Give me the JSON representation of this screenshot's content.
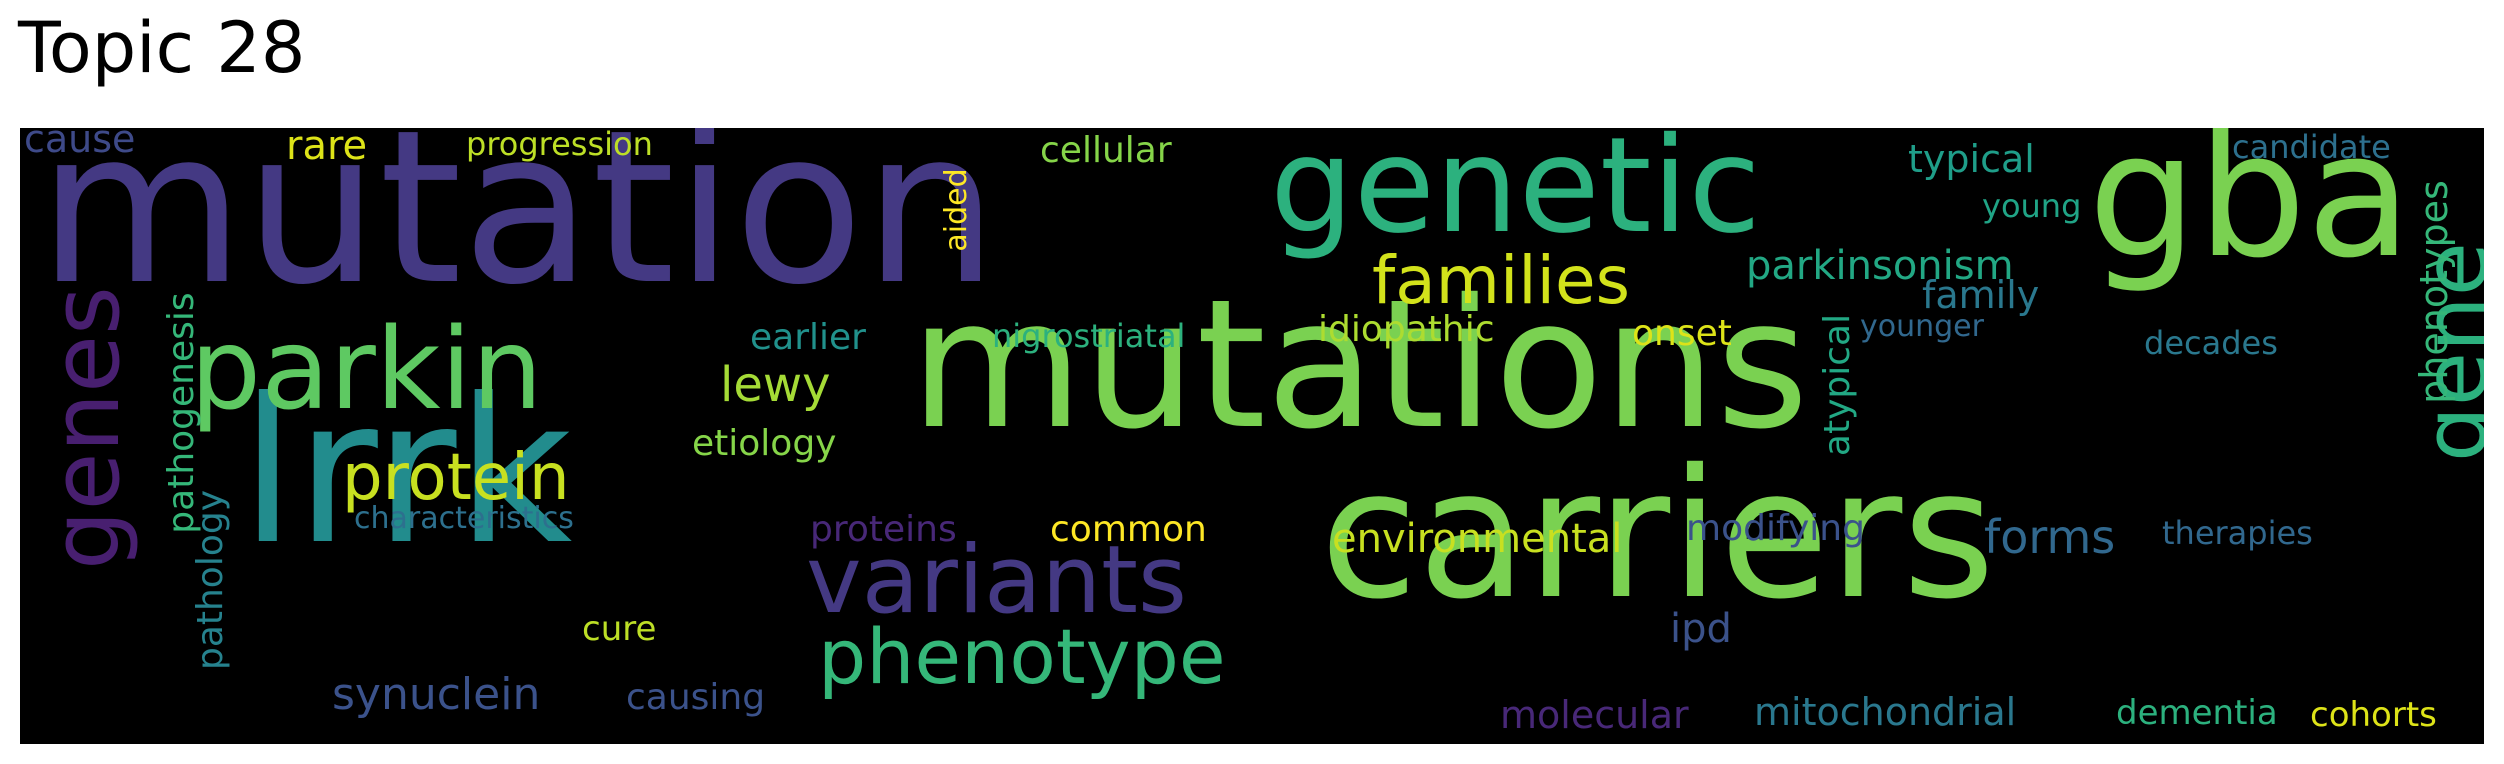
{
  "title": "Topic 28",
  "words": {
    "mutations": {
      "text": "mutations",
      "color": "#7ad151"
    },
    "mutation": {
      "text": "mutation",
      "color": "#443983"
    },
    "carriers": {
      "text": "carriers",
      "color": "#7ad151"
    },
    "lrrk": {
      "text": "lrrk",
      "color": "#228c8d"
    },
    "gba": {
      "text": "gba",
      "color": "#7ad151"
    },
    "genetic": {
      "text": "genetic",
      "color": "#2cb17e"
    },
    "parkin": {
      "text": "parkin",
      "color": "#5ec962"
    },
    "variants": {
      "text": "variants",
      "color": "#443983"
    },
    "phenotype": {
      "text": "phenotype",
      "color": "#35b779"
    },
    "protein": {
      "text": "protein",
      "color": "#c8e020"
    },
    "genes": {
      "text": "genes",
      "color": "#481f70"
    },
    "gene": {
      "text": "gene",
      "color": "#2cb17e"
    },
    "families": {
      "text": "families",
      "color": "#d2e21b"
    },
    "parkinsonism": {
      "text": "parkinsonism",
      "color": "#22a884"
    },
    "lewy": {
      "text": "lewy",
      "color": "#a5db36"
    },
    "synuclein": {
      "text": "synuclein",
      "color": "#3b528b"
    },
    "environmental": {
      "text": "environmental",
      "color": "#c8e020"
    },
    "phenotypes": {
      "text": "phenotypes",
      "color": "#35b779"
    },
    "typical": {
      "text": "typical",
      "color": "#1f9e89"
    },
    "family": {
      "text": "family",
      "color": "#2a788e"
    },
    "forms": {
      "text": "forms",
      "color": "#31688e"
    },
    "mitochondrial": {
      "text": "mitochondrial",
      "color": "#2a788e"
    },
    "idiopathic": {
      "text": "idiopathic",
      "color": "#addc30"
    },
    "onset": {
      "text": "onset",
      "color": "#dde318"
    },
    "earlier": {
      "text": "earlier",
      "color": "#21918c"
    },
    "nigrostriatal": {
      "text": "nigrostriatal",
      "color": "#2cb17e"
    },
    "etiology": {
      "text": "etiology",
      "color": "#86d549"
    },
    "cellular": {
      "text": "cellular",
      "color": "#86d549"
    },
    "rare": {
      "text": "rare",
      "color": "#dde318"
    },
    "progression": {
      "text": "progression",
      "color": "#bddf26"
    },
    "cause": {
      "text": "cause",
      "color": "#3e4a89"
    },
    "aided": {
      "text": "aided",
      "color": "#fde725"
    },
    "pathogenesis": {
      "text": "pathogenesis",
      "color": "#35b779"
    },
    "pathology": {
      "text": "pathology",
      "color": "#26828e"
    },
    "characteristics": {
      "text": "characteristics",
      "color": "#2d708e"
    },
    "proteins": {
      "text": "proteins",
      "color": "#482878"
    },
    "common": {
      "text": "common",
      "color": "#fde725"
    },
    "cure": {
      "text": "cure",
      "color": "#bddf26"
    },
    "causing": {
      "text": "causing",
      "color": "#3b528b"
    },
    "modifying": {
      "text": "modifying",
      "color": "#3b528b"
    },
    "atypical": {
      "text": "atypical",
      "color": "#22a884"
    },
    "younger": {
      "text": "younger",
      "color": "#31688e"
    },
    "young": {
      "text": "young",
      "color": "#20a486"
    },
    "candidate": {
      "text": "candidate",
      "color": "#2d708e"
    },
    "decades": {
      "text": "decades",
      "color": "#2a788e"
    },
    "therapies": {
      "text": "therapies",
      "color": "#31688e"
    },
    "ipd": {
      "text": "ipd",
      "color": "#3b528b"
    },
    "molecular": {
      "text": "molecular",
      "color": "#482878"
    },
    "dementia": {
      "text": "dementia",
      "color": "#2cb17e"
    },
    "cohorts": {
      "text": "cohorts",
      "color": "#dde318"
    }
  }
}
